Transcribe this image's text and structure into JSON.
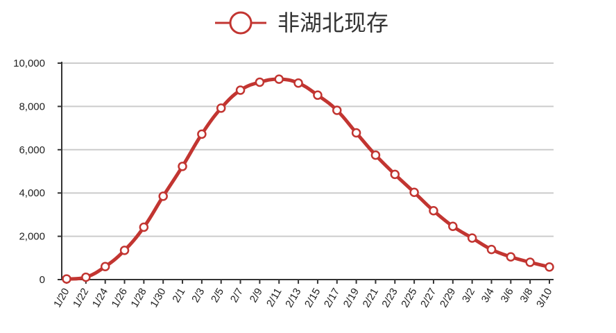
{
  "chart_data": {
    "type": "line",
    "title": "",
    "xlabel": "",
    "ylabel": "",
    "legend": {
      "position": "top-center",
      "entries": [
        "非湖北现存"
      ]
    },
    "grid": {
      "y": true,
      "x": false
    },
    "ylim": [
      0,
      10000
    ],
    "y_ticks": [
      "0",
      "2,000",
      "4,000",
      "6,000",
      "8,000",
      "10,000"
    ],
    "x_ticks": [
      "1/20",
      "1/22",
      "1/24",
      "1/26",
      "1/28",
      "1/30",
      "2/1",
      "2/3",
      "2/5",
      "2/7",
      "2/9",
      "2/11",
      "2/13",
      "2/15",
      "2/17",
      "2/19",
      "2/21",
      "2/23",
      "2/25",
      "2/27",
      "2/29",
      "3/2",
      "3/4",
      "3/6",
      "3/8",
      "3/10"
    ],
    "colors": {
      "series": "#c23531",
      "grid": "#cccccc",
      "axis": "#333333",
      "marker_fill": "#ffffff"
    },
    "series": [
      {
        "name": "非湖北现存",
        "values": [
          30,
          110,
          600,
          1350,
          2420,
          3850,
          5230,
          6720,
          7920,
          8750,
          9120,
          9260,
          9080,
          8520,
          7820,
          6780,
          5750,
          4860,
          4030,
          3180,
          2460,
          1920,
          1390,
          1050,
          800,
          580
        ]
      }
    ]
  }
}
